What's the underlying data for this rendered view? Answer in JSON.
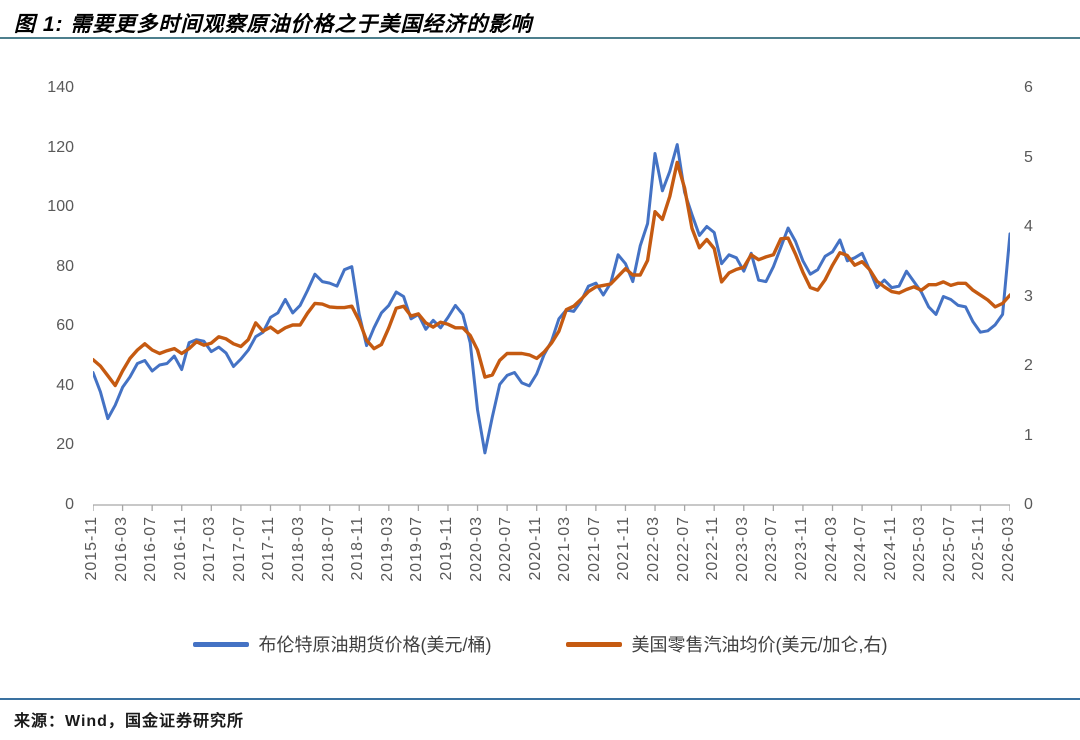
{
  "title": "图 1: 需要更多时间观察原油价格之于美国经济的影响",
  "source": "来源：Wind，国金证券研究所",
  "colors": {
    "brent_line": "#4472C4",
    "gasoline_line": "#C55A11",
    "divider_top": "#4D7F8D",
    "divider_bottom": "#3A71A0",
    "axis_text": "#595959",
    "axis_line": "#A6A6A6"
  },
  "legend": {
    "brent_label": "布伦特原油期货价格(美元/桶)",
    "gasoline_label": "美国零售汽油均价(美元/加仑,右)"
  },
  "chart_data": {
    "type": "line",
    "title": "需要更多时间观察原油价格之于美国经济的影响",
    "x_start": "2015-11",
    "x_end": "2026-03",
    "x_frequency": "monthly",
    "x_tick_labels": [
      "2015-11",
      "2016-03",
      "2016-07",
      "2016-11",
      "2017-03",
      "2017-07",
      "2017-11",
      "2018-03",
      "2018-07",
      "2018-11",
      "2019-03",
      "2019-07",
      "2019-11",
      "2020-03",
      "2020-07",
      "2020-11",
      "2021-03",
      "2021-07",
      "2021-11",
      "2022-03",
      "2022-07",
      "2022-11",
      "2023-03",
      "2023-07",
      "2023-11",
      "2024-03",
      "2024-07",
      "2024-11",
      "2025-03",
      "2025-07",
      "2025-11",
      "2026-03"
    ],
    "left_axis": {
      "min": 0,
      "max": 140,
      "ticks": [
        0,
        20,
        40,
        60,
        80,
        100,
        120,
        140
      ]
    },
    "right_axis": {
      "min": 0,
      "max": 6,
      "ticks": [
        0,
        1,
        2,
        3,
        4,
        5,
        6
      ]
    },
    "grid": false,
    "legend_position": "bottom",
    "series": [
      {
        "name": "布伦特原油期货价格(美元/桶)",
        "axis": "left",
        "color": "#4472C4",
        "values": [
          44.5,
          38.0,
          29.0,
          33.5,
          39.5,
          43.0,
          47.5,
          48.5,
          45.0,
          47.0,
          47.5,
          50.0,
          45.5,
          54.5,
          55.5,
          55.0,
          51.5,
          53.0,
          51.0,
          46.5,
          49.0,
          52.0,
          56.5,
          58.0,
          63.0,
          64.5,
          69.0,
          64.5,
          67.0,
          72.0,
          77.5,
          75.0,
          74.5,
          73.5,
          79.0,
          80.0,
          64.0,
          53.5,
          59.5,
          64.5,
          67.0,
          71.5,
          70.0,
          62.5,
          64.0,
          59.0,
          62.0,
          59.5,
          63.0,
          67.0,
          64.0,
          54.5,
          32.0,
          17.5,
          29.5,
          40.5,
          43.5,
          44.5,
          41.0,
          40.0,
          44.0,
          50.5,
          55.0,
          62.5,
          65.5,
          65.0,
          68.5,
          73.5,
          74.5,
          70.5,
          74.5,
          84.0,
          81.0,
          75.0,
          87.0,
          94.5,
          118.0,
          105.5,
          112.0,
          121.0,
          105.0,
          97.5,
          90.5,
          93.5,
          91.5,
          81.0,
          84.0,
          83.0,
          78.5,
          84.5,
          75.5,
          75.0,
          80.0,
          86.5,
          93.0,
          88.5,
          82.0,
          77.5,
          79.0,
          83.5,
          85.0,
          89.0,
          82.0,
          83.0,
          84.5,
          79.0,
          73.0,
          75.5,
          73.0,
          73.5,
          78.5,
          75.0,
          71.5,
          66.5,
          64.0,
          70.0,
          69.0,
          67.0,
          66.5,
          61.5,
          58.0,
          58.5,
          60.5,
          64.0,
          91.0
        ]
      },
      {
        "name": "美国零售汽油均价(美元/加仑,右)",
        "axis": "right",
        "color": "#C55A11",
        "values": [
          2.09,
          2.0,
          1.86,
          1.72,
          1.93,
          2.11,
          2.23,
          2.32,
          2.23,
          2.18,
          2.22,
          2.25,
          2.18,
          2.25,
          2.35,
          2.3,
          2.33,
          2.42,
          2.39,
          2.32,
          2.28,
          2.38,
          2.62,
          2.5,
          2.56,
          2.48,
          2.55,
          2.59,
          2.59,
          2.76,
          2.9,
          2.89,
          2.85,
          2.84,
          2.84,
          2.86,
          2.65,
          2.37,
          2.25,
          2.31,
          2.55,
          2.83,
          2.86,
          2.72,
          2.75,
          2.62,
          2.56,
          2.63,
          2.6,
          2.55,
          2.55,
          2.44,
          2.23,
          1.84,
          1.87,
          2.08,
          2.18,
          2.18,
          2.18,
          2.16,
          2.11,
          2.2,
          2.33,
          2.5,
          2.81,
          2.86,
          2.96,
          3.07,
          3.14,
          3.16,
          3.18,
          3.29,
          3.4,
          3.31,
          3.31,
          3.52,
          4.22,
          4.11,
          4.44,
          4.93,
          4.56,
          3.98,
          3.7,
          3.82,
          3.69,
          3.21,
          3.34,
          3.39,
          3.42,
          3.6,
          3.53,
          3.57,
          3.6,
          3.83,
          3.84,
          3.61,
          3.35,
          3.13,
          3.09,
          3.24,
          3.45,
          3.63,
          3.59,
          3.45,
          3.5,
          3.39,
          3.22,
          3.14,
          3.07,
          3.05,
          3.1,
          3.14,
          3.09,
          3.17,
          3.17,
          3.21,
          3.16,
          3.19,
          3.19,
          3.09,
          3.02,
          2.95,
          2.85,
          2.9,
          3.02
        ]
      }
    ]
  }
}
